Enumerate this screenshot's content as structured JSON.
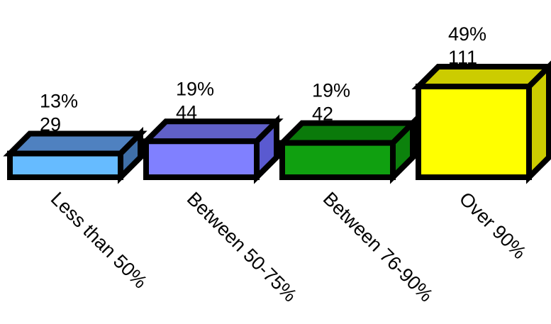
{
  "chart_data": {
    "type": "bar",
    "style": "3d-box",
    "title": "",
    "xlabel": "",
    "ylabel": "",
    "grid": false,
    "legend": "none",
    "categories": [
      "Less than 50%",
      "Between 50-75%",
      "Between 76-90%",
      "Over 90%"
    ],
    "values": [
      29,
      44,
      42,
      111
    ],
    "percent_labels": [
      "13%",
      "19%",
      "19%",
      "49%"
    ],
    "count_labels": [
      "29",
      "44",
      "42",
      "111"
    ],
    "colors": {
      "front": [
        "#66BBFF",
        "#8080FF",
        "#10A010",
        "#FFFF00"
      ],
      "top": [
        "#4F81C0",
        "#6060C8",
        "#0A7A0A",
        "#CCCC00"
      ],
      "side": [
        "#3F6FA8",
        "#5A5AD0",
        "#0C820C",
        "#CCCC00"
      ],
      "outline": "#000000"
    }
  }
}
